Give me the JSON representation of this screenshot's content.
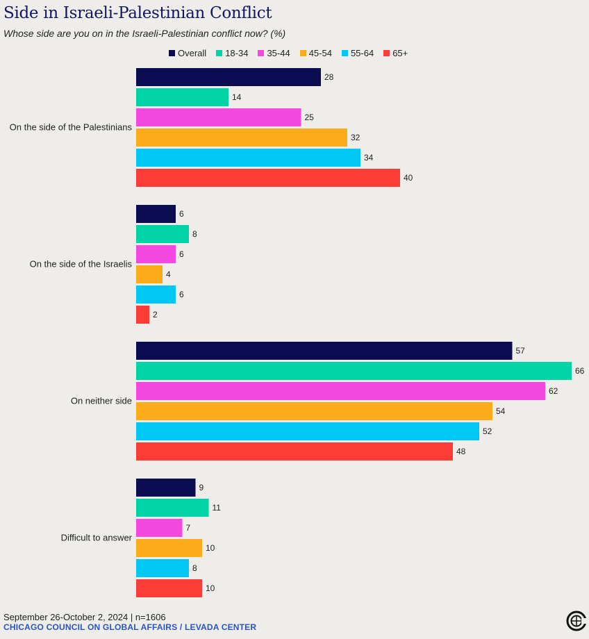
{
  "title": "Side in Israeli-Palestinian Conflict",
  "subtitle": "Whose side are you on in the Israeli-Palestinian conflict now? (%)",
  "footer": {
    "date_line": "September 26-October 2, 2024 | n=1606",
    "source_line": "CHICAGO COUNCIL ON GLOBAL AFFAIRS / LEVADA CENTER"
  },
  "logo_icon": "chicago-council-logo-icon",
  "chart_data": {
    "type": "bar",
    "orientation": "horizontal",
    "title": "Side in Israeli-Palestinian Conflict",
    "subtitle": "Whose side are you on in the Israeli-Palestinian conflict now? (%)",
    "legend_placement": "top",
    "grid": false,
    "xlim": [
      0,
      66
    ],
    "categories": [
      "On the side of the Palestinians",
      "On the side of the Israelis",
      "On neither side",
      "Difficult to answer"
    ],
    "series": [
      {
        "name": "Overall",
        "color": "#0c0c52",
        "values": [
          28,
          6,
          57,
          9
        ]
      },
      {
        "name": "18-34",
        "color": "#00d4a6",
        "values": [
          14,
          8,
          66,
          11
        ]
      },
      {
        "name": "35-44",
        "color": "#f548e0",
        "values": [
          25,
          6,
          62,
          7
        ]
      },
      {
        "name": "45-54",
        "color": "#fcac1b",
        "values": [
          32,
          4,
          54,
          10
        ]
      },
      {
        "name": "55-64",
        "color": "#00c8f5",
        "values": [
          34,
          6,
          52,
          8
        ]
      },
      {
        "name": "65+",
        "color": "#fc3c36",
        "values": [
          40,
          2,
          48,
          10
        ]
      }
    ]
  }
}
